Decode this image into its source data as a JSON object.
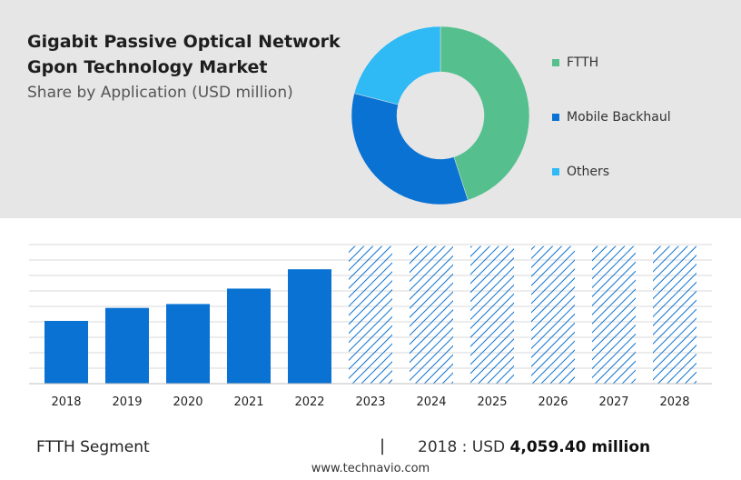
{
  "header": {
    "title_line1": "Gigabit Passive Optical Network",
    "title_line2": "Gpon Technology Market",
    "subtitle": "Share by Application (USD million)"
  },
  "chart_data": [
    {
      "type": "pie",
      "donut": true,
      "categories": [
        "FTTH",
        "Mobile Backhaul",
        "Others"
      ],
      "values": [
        45,
        34,
        21
      ],
      "colors": [
        "#55c08e",
        "#0a72d2",
        "#2fbaf5"
      ],
      "legend": "right"
    },
    {
      "type": "bar",
      "categories": [
        "2018",
        "2019",
        "2020",
        "2021",
        "2022",
        "2023",
        "2024",
        "2025",
        "2026",
        "2027",
        "2028"
      ],
      "values": [
        4059.4,
        4900,
        5150,
        6150,
        7400,
        8900,
        8900,
        8900,
        8900,
        8900,
        8900
      ],
      "forecast_from": "2023",
      "forecast_style": "hatched",
      "color": "#0a72d2",
      "ylim": [
        0,
        9000
      ],
      "grid": true
    }
  ],
  "footer": {
    "segment": "FTTH Segment",
    "separator": "|",
    "year_prefix": "2018 : USD ",
    "value": "4,059.40 million",
    "source": "www.technavio.com"
  }
}
